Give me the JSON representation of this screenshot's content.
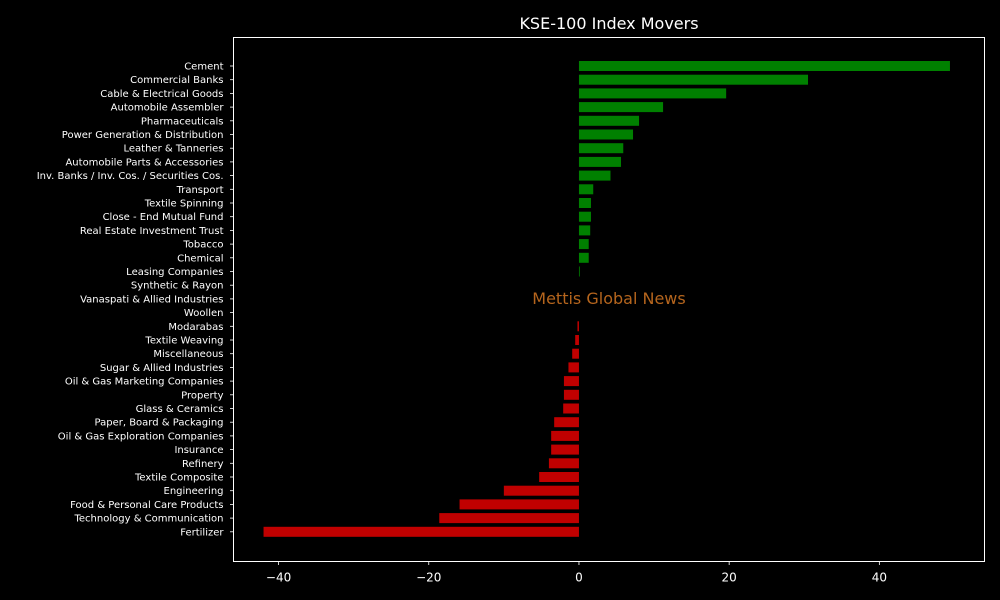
{
  "chart_data": {
    "type": "bar",
    "orientation": "horizontal",
    "title": "KSE-100 Index Movers",
    "xlabel": "",
    "ylabel": "",
    "xlim": [
      -46,
      54
    ],
    "xticks": [
      -40,
      -20,
      0,
      20,
      40
    ],
    "xtick_labels": [
      "−40",
      "−20",
      "0",
      "20",
      "40"
    ],
    "grid": false,
    "legend": "none",
    "watermark": "Mettis Global News",
    "colors": {
      "background": "#000000",
      "axes": "#ffffff",
      "positive": "#008000",
      "negative": "#c00000",
      "watermark": "#b5651d"
    },
    "categories": [
      "Cement",
      "Commercial Banks",
      "Cable & Electrical Goods",
      "Automobile Assembler",
      "Pharmaceuticals",
      "Power Generation & Distribution",
      "Leather & Tanneries",
      "Automobile Parts & Accessories",
      "Inv. Banks / Inv. Cos. / Securities Cos.",
      "Transport",
      "Textile Spinning",
      "Close - End Mutual Fund",
      "Real Estate Investment Trust",
      "Tobacco",
      "Chemical",
      "Leasing Companies",
      "Synthetic & Rayon",
      "Vanaspati & Allied Industries",
      "Woollen",
      "Modarabas",
      "Textile Weaving",
      "Miscellaneous",
      "Sugar & Allied Industries",
      "Oil & Gas Marketing Companies",
      "Property",
      "Glass & Ceramics",
      "Paper, Board & Packaging",
      "Oil & Gas Exploration Companies",
      "Insurance",
      "Refinery",
      "Textile Composite",
      "Engineering",
      "Food & Personal Care Products",
      "Technology & Communication",
      "Fertilizer"
    ],
    "values": [
      49.4,
      30.5,
      19.6,
      11.2,
      8.0,
      7.2,
      5.9,
      5.6,
      4.2,
      1.9,
      1.6,
      1.6,
      1.5,
      1.3,
      1.3,
      0.1,
      0.0,
      0.0,
      0.0,
      -0.2,
      -0.5,
      -0.9,
      -1.4,
      -2.0,
      -2.0,
      -2.1,
      -3.3,
      -3.7,
      -3.7,
      -4.0,
      -5.3,
      -10.0,
      -15.9,
      -18.6,
      -42.0
    ]
  }
}
